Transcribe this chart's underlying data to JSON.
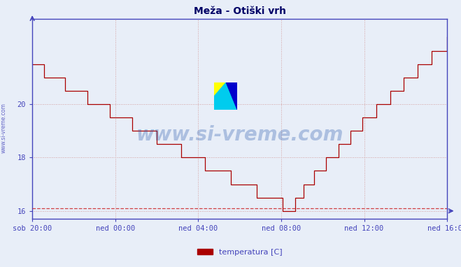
{
  "title": "Meža - Otiški vrh",
  "legend_label": "temperatura [C]",
  "bg_color": "#e8eef8",
  "plot_bg_color": "#e8eef8",
  "line_color": "#aa0000",
  "axis_color": "#4444bb",
  "grid_color": "#d4a0a0",
  "dashed_line_color": "#cc2222",
  "yticks": [
    16,
    18,
    20
  ],
  "ylim": [
    15.7,
    23.2
  ],
  "xlim": [
    0,
    240
  ],
  "xtick_positions": [
    0,
    48,
    96,
    144,
    192,
    240
  ],
  "xtick_labels": [
    "sob 20:00",
    "ned 00:00",
    "ned 04:00",
    "ned 08:00",
    "ned 12:00",
    "ned 16:00"
  ],
  "legend_color": "#aa0000",
  "watermark_text": "www.si-vreme.com",
  "left_text": "www.si-vreme.com",
  "title_color": "#000066",
  "title_fontsize": 10,
  "tick_color": "#4444bb",
  "tick_fontsize": 7.5
}
